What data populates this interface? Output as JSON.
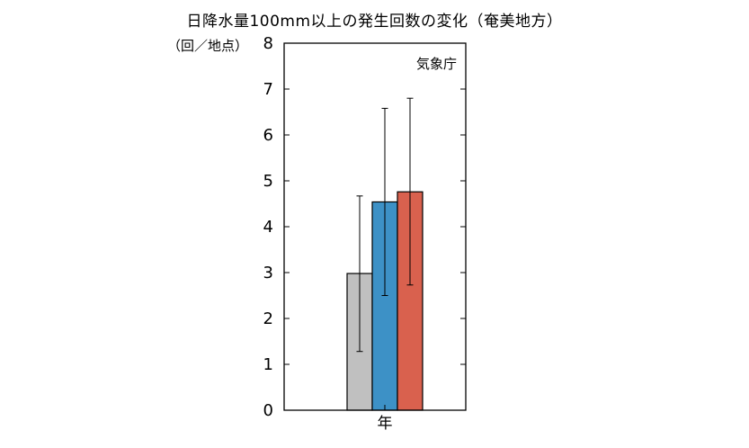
{
  "chart_data": {
    "type": "bar",
    "title": "日降水量100mm以上の発生回数の変化（奄美地方）",
    "ylabel": "（回／地点）",
    "source_label": "気象庁",
    "categories": [
      "年"
    ],
    "series": [
      {
        "color": "#c0c0c0",
        "values": [
          2.98
        ],
        "error_low": [
          1.28
        ],
        "error_high": [
          4.67
        ]
      },
      {
        "color": "#3d91c6",
        "values": [
          4.54
        ],
        "error_low": [
          2.5
        ],
        "error_high": [
          6.58
        ]
      },
      {
        "color": "#d9614e",
        "values": [
          4.76
        ],
        "error_low": [
          2.73
        ],
        "error_high": [
          6.8
        ]
      }
    ],
    "ylim": [
      0,
      8
    ],
    "yticks": [
      "0",
      "1",
      "2",
      "3",
      "4",
      "5",
      "6",
      "7",
      "8"
    ],
    "grid": false,
    "legend": "none"
  }
}
